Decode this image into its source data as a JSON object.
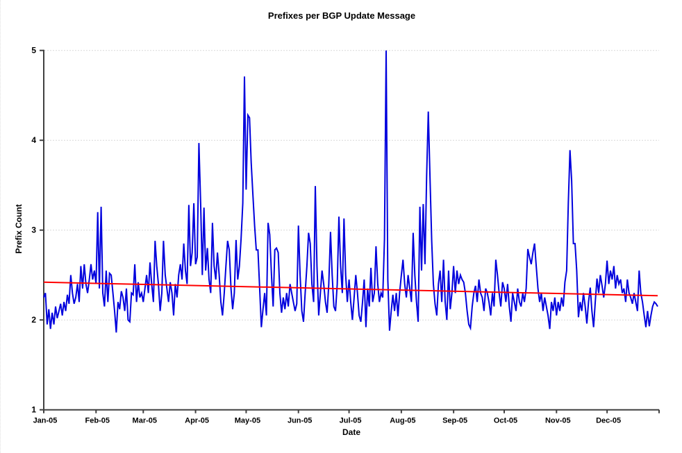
{
  "chart_data": {
    "type": "line",
    "title": "Prefixes per BGP Update Message",
    "xlabel": "Date",
    "ylabel": "Prefix Count",
    "ylim": [
      1,
      5
    ],
    "yticks": [
      1,
      2,
      3,
      4,
      5
    ],
    "x_tick_labels": [
      "Jan-05",
      "Feb-05",
      "Mar-05",
      "Apr-05",
      "May-05",
      "Jun-05",
      "Jul-05",
      "Aug-05",
      "Sep-05",
      "Oct-05",
      "Nov-05",
      "Dec-05"
    ],
    "month_day_counts": [
      31,
      28,
      31,
      30,
      31,
      30,
      31,
      31,
      30,
      31,
      30,
      31
    ],
    "grid": "horizontal dotted lines at integer y values, no vertical grid",
    "legend": "none",
    "colors": {
      "series": "#0000dd",
      "trend": "#ff0000",
      "axis": "#404040",
      "grid": "#d8d8d8"
    },
    "series": [
      {
        "name": "Prefixes per BGP update (daily, 2005)",
        "color": "#0000dd",
        "x_unit": "day of year 2005",
        "values": [
          2.25,
          2.3,
          1.95,
          2.12,
          1.9,
          2.08,
          1.95,
          2.15,
          2.02,
          2.1,
          2.18,
          2.05,
          2.2,
          2.1,
          2.28,
          2.18,
          2.5,
          2.3,
          2.18,
          2.25,
          2.4,
          2.2,
          2.6,
          2.35,
          2.62,
          2.4,
          2.3,
          2.45,
          2.62,
          2.45,
          2.55,
          2.4,
          3.2,
          2.35,
          3.26,
          2.3,
          2.15,
          2.55,
          2.2,
          2.52,
          2.5,
          2.3,
          2.1,
          1.86,
          2.2,
          2.12,
          2.32,
          2.25,
          2.1,
          2.35,
          2.0,
          1.98,
          2.3,
          2.28,
          2.62,
          2.2,
          2.42,
          2.25,
          2.3,
          2.2,
          2.35,
          2.5,
          2.3,
          2.64,
          2.4,
          2.2,
          2.88,
          2.6,
          2.4,
          2.1,
          2.3,
          2.88,
          2.5,
          2.35,
          2.2,
          2.42,
          2.3,
          2.05,
          2.4,
          2.25,
          2.5,
          2.62,
          2.45,
          2.85,
          2.55,
          2.4,
          3.28,
          2.6,
          2.75,
          3.3,
          2.62,
          2.7,
          3.97,
          3.3,
          2.5,
          3.25,
          2.55,
          2.8,
          2.45,
          2.3,
          3.08,
          2.6,
          2.45,
          2.75,
          2.5,
          2.2,
          2.05,
          2.3,
          2.6,
          2.88,
          2.78,
          2.35,
          2.12,
          2.3,
          2.89,
          2.45,
          2.6,
          2.9,
          3.3,
          4.71,
          3.45,
          4.28,
          4.25,
          3.75,
          3.4,
          3.05,
          2.78,
          2.78,
          2.35,
          1.92,
          2.12,
          2.3,
          2.05,
          3.08,
          2.95,
          2.5,
          2.15,
          2.78,
          2.8,
          2.75,
          2.3,
          2.08,
          2.25,
          2.12,
          2.3,
          2.15,
          2.4,
          2.3,
          2.2,
          2.1,
          2.18,
          3.05,
          2.5,
          2.1,
          1.98,
          2.3,
          2.6,
          2.97,
          2.85,
          2.4,
          2.2,
          3.49,
          2.6,
          2.05,
          2.3,
          2.55,
          2.4,
          2.2,
          2.08,
          2.4,
          2.98,
          2.5,
          2.15,
          2.1,
          2.4,
          3.15,
          2.6,
          2.3,
          3.13,
          2.5,
          2.2,
          2.45,
          2.2,
          2.0,
          2.25,
          2.5,
          2.3,
          2.05,
          1.98,
          2.2,
          2.45,
          1.92,
          2.35,
          2.15,
          2.58,
          2.2,
          2.3,
          2.82,
          2.4,
          2.2,
          2.3,
          2.25,
          2.9,
          5.0,
          2.45,
          1.88,
          2.1,
          2.28,
          2.1,
          2.3,
          2.04,
          2.3,
          2.5,
          2.67,
          2.4,
          2.25,
          2.5,
          2.35,
          2.2,
          2.97,
          2.5,
          2.2,
          1.98,
          3.26,
          2.55,
          3.29,
          2.62,
          3.6,
          4.32,
          3.6,
          2.88,
          2.4,
          2.18,
          2.05,
          2.4,
          2.55,
          2.2,
          2.67,
          2.2,
          2.0,
          2.55,
          2.12,
          2.3,
          2.6,
          2.3,
          2.55,
          2.4,
          2.5,
          2.45,
          2.42,
          2.3,
          2.1,
          1.95,
          1.91,
          2.15,
          2.3,
          2.38,
          2.2,
          2.45,
          2.3,
          2.25,
          2.1,
          2.35,
          2.3,
          2.2,
          2.05,
          2.3,
          2.15,
          2.67,
          2.5,
          2.3,
          2.15,
          2.42,
          2.35,
          2.2,
          2.4,
          2.15,
          1.98,
          2.3,
          2.2,
          2.1,
          2.35,
          2.2,
          2.15,
          2.3,
          2.2,
          2.35,
          2.79,
          2.7,
          2.62,
          2.75,
          2.85,
          2.6,
          2.35,
          2.2,
          2.3,
          2.1,
          2.25,
          2.15,
          2.05,
          1.9,
          2.2,
          2.1,
          2.25,
          2.05,
          2.2,
          2.1,
          2.25,
          2.15,
          2.42,
          2.55,
          3.3,
          3.89,
          3.55,
          2.85,
          2.85,
          2.55,
          2.03,
          2.2,
          2.1,
          2.3,
          2.15,
          1.96,
          2.2,
          2.36,
          2.1,
          1.92,
          2.2,
          2.46,
          2.3,
          2.5,
          2.38,
          2.25,
          2.4,
          2.66,
          2.4,
          2.55,
          2.45,
          2.6,
          2.35,
          2.5,
          2.4,
          2.45,
          2.3,
          2.35,
          2.2,
          2.45,
          2.3,
          2.25,
          2.18,
          2.3,
          2.2,
          2.1,
          2.55,
          2.3,
          2.2,
          2.05,
          1.92,
          2.1,
          1.93,
          2.05,
          2.15,
          2.2,
          2.18,
          2.15
        ]
      },
      {
        "name": "linear trend",
        "color": "#ff0000",
        "start_value": 2.42,
        "end_value": 2.27
      }
    ]
  }
}
